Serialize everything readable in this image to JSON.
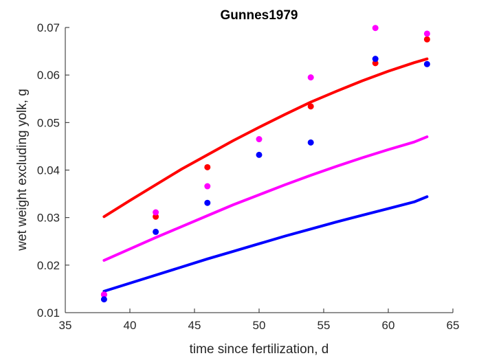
{
  "chart_data": {
    "type": "scatter",
    "title": "Gunnes1979",
    "xlabel": "time since fertilization, d",
    "ylabel": "wet weight excluding yolk, g",
    "xlim": [
      35,
      65
    ],
    "ylim": [
      0.01,
      0.07
    ],
    "xticks": [
      35,
      40,
      45,
      50,
      55,
      60,
      65
    ],
    "yticks": [
      0.01,
      0.02,
      0.03,
      0.04,
      0.05,
      0.06,
      0.07
    ],
    "xtick_labels": [
      "35",
      "40",
      "45",
      "50",
      "55",
      "60",
      "65"
    ],
    "ytick_labels": [
      "0.01",
      "0.02",
      "0.03",
      "0.04",
      "0.05",
      "0.06",
      "0.07"
    ],
    "grid": false,
    "series": [
      {
        "color": "#ff0000",
        "points": {
          "x": [
            38,
            42,
            46,
            54,
            59,
            63
          ],
          "y": [
            0.0138,
            0.0302,
            0.0406,
            0.0534,
            0.0625,
            0.0675
          ]
        },
        "curve": {
          "x": [
            38,
            40,
            42,
            44,
            46,
            48,
            50,
            52,
            54,
            56,
            58,
            60,
            62,
            63
          ],
          "y": [
            0.0302,
            0.0336,
            0.0369,
            0.0402,
            0.0432,
            0.0462,
            0.049,
            0.0517,
            0.0543,
            0.0566,
            0.0588,
            0.0608,
            0.0626,
            0.0634
          ]
        }
      },
      {
        "color": "#ff00ff",
        "points": {
          "x": [
            38,
            42,
            46,
            50,
            54,
            59,
            63
          ],
          "y": [
            0.0138,
            0.0311,
            0.0366,
            0.0465,
            0.0595,
            0.0699,
            0.0687
          ]
        },
        "curve": {
          "x": [
            38,
            40,
            42,
            44,
            46,
            48,
            50,
            52,
            54,
            56,
            58,
            60,
            62,
            63
          ],
          "y": [
            0.021,
            0.0234,
            0.0258,
            0.0281,
            0.0304,
            0.0327,
            0.0348,
            0.0369,
            0.0389,
            0.0408,
            0.0426,
            0.0443,
            0.0459,
            0.047
          ]
        }
      },
      {
        "color": "#0000ff",
        "points": {
          "x": [
            38,
            42,
            46,
            50,
            54,
            59,
            63
          ],
          "y": [
            0.0128,
            0.027,
            0.0331,
            0.0432,
            0.0458,
            0.0634,
            0.0623
          ]
        },
        "curve": {
          "x": [
            38,
            40,
            42,
            44,
            46,
            48,
            50,
            52,
            54,
            56,
            58,
            60,
            62,
            63
          ],
          "y": [
            0.0145,
            0.0162,
            0.0179,
            0.0196,
            0.0213,
            0.0229,
            0.0245,
            0.0261,
            0.0276,
            0.0291,
            0.0305,
            0.0319,
            0.0333,
            0.0344
          ]
        }
      }
    ]
  }
}
